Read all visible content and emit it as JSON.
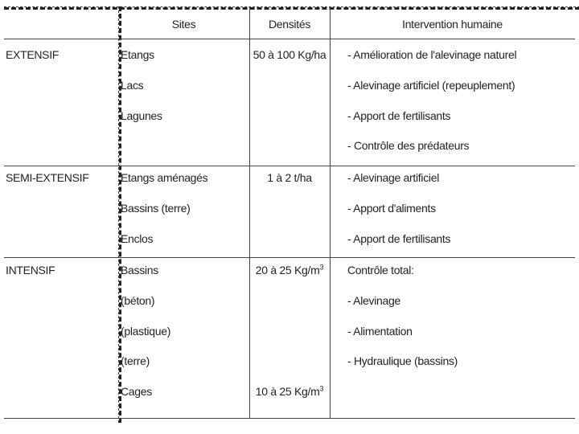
{
  "table": {
    "header": {
      "sites": "Sites",
      "densities": "Densités",
      "intervention": "Intervention humaine"
    },
    "rows": [
      {
        "name": "EXTENSIF",
        "sites": [
          "Etangs",
          "Lacs",
          "Lagunes"
        ],
        "densities": [
          {
            "text": "50 à 100 Kg/ha"
          }
        ],
        "interventions": [
          "- Amélioration de l'alevinage naturel",
          "- Alevinage artificiel (repeuplement)",
          "- Apport de fertilisants",
          "- Contrôle des prédateurs"
        ]
      },
      {
        "name": "SEMI-EXTENSIF",
        "sites": [
          "Etangs aménagés",
          "Bassins (terre)",
          "Enclos"
        ],
        "densities": [
          {
            "text": "1 à 2 t/ha"
          }
        ],
        "interventions": [
          "- Alevinage artificiel",
          "- Apport d'aliments",
          "- Apport de fertilisants"
        ]
      },
      {
        "name": "INTENSIF",
        "sites": [
          "Bassins",
          "(béton)",
          "(plastique)",
          "(terre)",
          "Cages"
        ],
        "densities": [
          {
            "text": "20 à 25 Kg/m",
            "sup": "3"
          },
          {
            "text": "10 à 25 Kg/m",
            "sup": "3"
          }
        ],
        "interventions": [
          "Contrôle total:",
          "- Alevinage",
          "- Alimentation",
          "- Hydraulique (bassins)"
        ]
      }
    ]
  }
}
